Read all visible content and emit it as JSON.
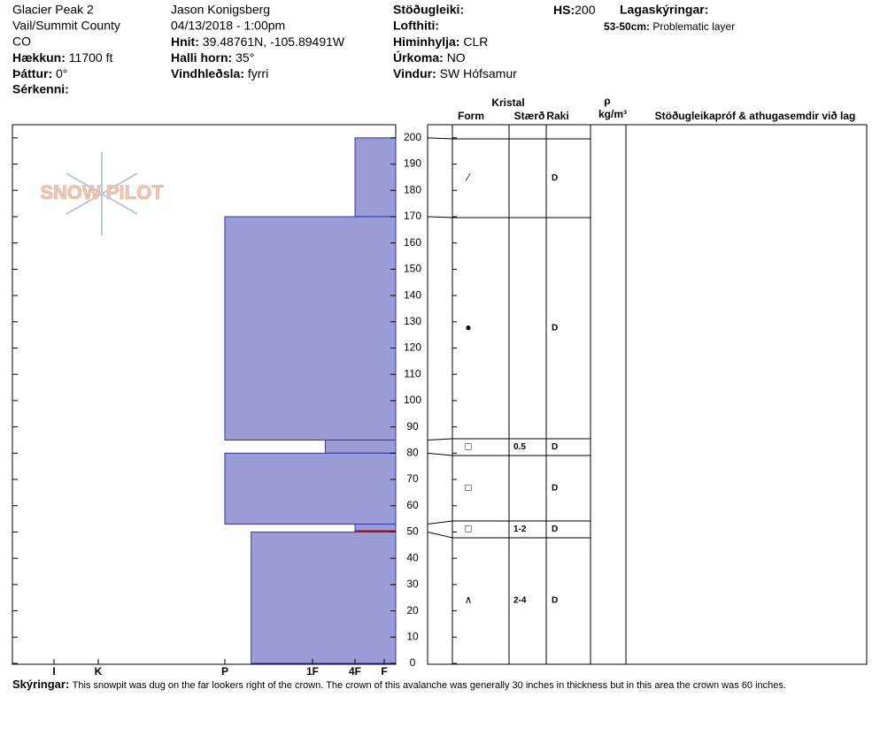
{
  "header": {
    "site": "Glacier Peak 2",
    "location": "Vail/Summit County",
    "state": "CO",
    "elevation": {
      "label": "Hækkun:",
      "value": "11700 ft"
    },
    "aspect": {
      "label": "Þáttur:",
      "value": "0°"
    },
    "features": {
      "label": "Sérkenni:"
    },
    "observer": "Jason Konigsberg",
    "datetime": "04/13/2018 - 1:00pm",
    "coords": {
      "label": "Hnit:",
      "value": "39.48761N, -105.89491W"
    },
    "slope": {
      "label": "Halli horn:",
      "value": "35°"
    },
    "wind_loading": {
      "label": "Vindhleðsla:",
      "value": "fyrri"
    },
    "stability": {
      "label": "Stöðugleiki:"
    },
    "air_temp": {
      "label": "Lofthiti:"
    },
    "sky": {
      "label": "Himinhylja:",
      "value": "CLR"
    },
    "precip": {
      "label": "Úrkoma:",
      "value": "NO"
    },
    "wind": {
      "label": "Vindur:",
      "value": "SW Hófsamur"
    },
    "hs": {
      "label": "HS:",
      "value": "200"
    },
    "layer_notes": {
      "label": "Lagaskýringar:",
      "items": [
        {
          "label": "53-50cm:",
          "text": "Problematic layer"
        }
      ]
    }
  },
  "logo": "SNOW PILOT",
  "chart_data": {
    "type": "snow-profile",
    "ylim": [
      0,
      205
    ],
    "yticks": [
      0,
      10,
      20,
      30,
      40,
      50,
      60,
      70,
      80,
      90,
      100,
      110,
      120,
      130,
      140,
      150,
      160,
      170,
      180,
      190,
      200
    ],
    "xticks": [
      {
        "value": 6,
        "label": "I"
      },
      {
        "value": 5,
        "label": "K"
      },
      {
        "value": 4,
        "label": "P"
      },
      {
        "value": 3,
        "label": "1F"
      },
      {
        "value": 2,
        "label": "4F"
      },
      {
        "value": 1,
        "label": "F"
      }
    ],
    "color": "#9b9bd6",
    "layers": [
      {
        "top": 200,
        "bottom": 170,
        "hardness": 2
      },
      {
        "top": 170,
        "bottom": 85,
        "hardness": 4
      },
      {
        "top": 85,
        "bottom": 80,
        "hardness": 2.7
      },
      {
        "top": 80,
        "bottom": 53,
        "hardness": 4
      },
      {
        "top": 53,
        "bottom": 50,
        "hardness": 2
      },
      {
        "top": 50,
        "bottom": 0,
        "hardness": 3.7
      }
    ],
    "problem_layer": {
      "top": 53,
      "bottom": 50,
      "color": "#a01010"
    },
    "table_headers": {
      "crystal": "Kristal",
      "form": "Form",
      "size": "Stærð",
      "moisture": "Raki",
      "density": "ρ",
      "density_unit": "kg/m³",
      "comments": "Stöðugleikapróf & athugasemdir við lag"
    },
    "crystal_layers": [
      {
        "top": 200,
        "bottom": 170,
        "form": "⁄",
        "moisture": "D"
      },
      {
        "top": 170,
        "bottom": 85,
        "form": "●",
        "moisture": "D"
      },
      {
        "top": 85,
        "bottom": 80,
        "form": "□",
        "size": "0.5",
        "moisture": "D"
      },
      {
        "top": 80,
        "bottom": 53,
        "form": "□",
        "moisture": "D"
      },
      {
        "top": 53,
        "bottom": 50,
        "form": "□",
        "size": "1-2",
        "moisture": "D"
      },
      {
        "top": 50,
        "bottom": 0,
        "form": "∧",
        "size": "2-4",
        "moisture": "D"
      }
    ]
  },
  "footer": {
    "label": "Skýringar:",
    "text": "This snowpit was dug on the far lookers right of the crown. The crown of this avalanche was generally 30 inches in thickness but in this area the crown was 60 inches."
  }
}
